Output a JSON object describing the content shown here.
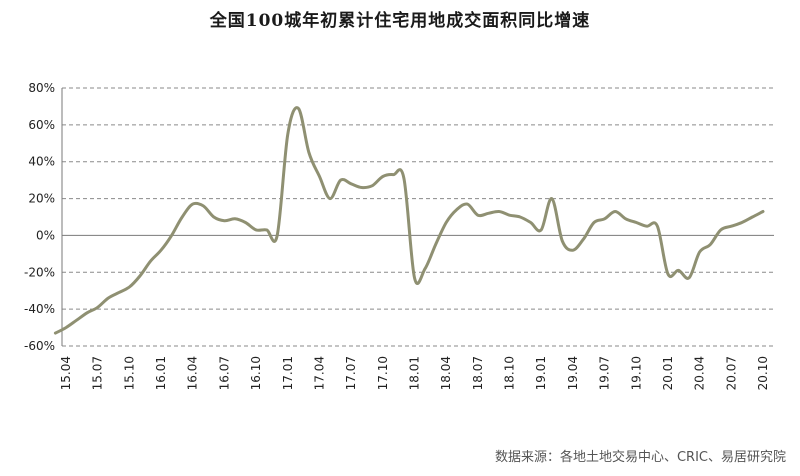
{
  "chart_data": {
    "type": "line",
    "title": "全国100城年初累计住宅用地成交面积同比增速",
    "source": "数据来源：各地土地交易中心、CRIC、易居研究院",
    "ylim": [
      -60,
      80
    ],
    "yticks": [
      -60,
      -40,
      -20,
      0,
      20,
      40,
      60,
      80
    ],
    "ytick_labels": [
      "-60%",
      "-40%",
      "-20%",
      "0%",
      "20%",
      "40%",
      "60%",
      "80%"
    ],
    "grid": "horizontal dashed",
    "legend": "none",
    "xtick_labels": [
      "15.04",
      "15.07",
      "15.10",
      "16.01",
      "16.04",
      "16.07",
      "16.10",
      "17.01",
      "17.04",
      "17.07",
      "17.10",
      "18.01",
      "18.04",
      "18.07",
      "18.10",
      "19.01",
      "19.04",
      "19.07",
      "19.10",
      "20.01",
      "20.04",
      "20.07",
      "20.10"
    ],
    "series": [
      {
        "color": "#8f9072",
        "values": [
          [
            "15.03",
            -53
          ],
          [
            "15.04",
            -50
          ],
          [
            "15.05",
            -46
          ],
          [
            "15.06",
            -42
          ],
          [
            "15.07",
            -39
          ],
          [
            "15.08",
            -34
          ],
          [
            "15.09",
            -31
          ],
          [
            "15.10",
            -28
          ],
          [
            "15.11",
            -22
          ],
          [
            "15.12",
            -14
          ],
          [
            "16.01",
            -8
          ],
          [
            "16.02",
            0
          ],
          [
            "16.03",
            10
          ],
          [
            "16.04",
            17
          ],
          [
            "16.05",
            16
          ],
          [
            "16.06",
            10
          ],
          [
            "16.07",
            8
          ],
          [
            "16.08",
            9
          ],
          [
            "16.09",
            7
          ],
          [
            "16.10",
            3
          ],
          [
            "16.11",
            3
          ],
          [
            "16.12",
            0
          ],
          [
            "17.01",
            55
          ],
          [
            "17.02",
            69
          ],
          [
            "17.03",
            45
          ],
          [
            "17.04",
            32
          ],
          [
            "17.05",
            20
          ],
          [
            "17.06",
            30
          ],
          [
            "17.07",
            28
          ],
          [
            "17.08",
            26
          ],
          [
            "17.09",
            27
          ],
          [
            "17.10",
            32
          ],
          [
            "17.11",
            33
          ],
          [
            "17.12",
            31
          ],
          [
            "18.01",
            -23
          ],
          [
            "18.02",
            -18
          ],
          [
            "18.03",
            -5
          ],
          [
            "18.04",
            7
          ],
          [
            "18.05",
            14
          ],
          [
            "18.06",
            17
          ],
          [
            "18.07",
            11
          ],
          [
            "18.08",
            12
          ],
          [
            "18.09",
            13
          ],
          [
            "18.10",
            11
          ],
          [
            "18.11",
            10
          ],
          [
            "18.12",
            7
          ],
          [
            "19.01",
            3
          ],
          [
            "19.02",
            20
          ],
          [
            "19.03",
            -3
          ],
          [
            "19.04",
            -8
          ],
          [
            "19.05",
            -2
          ],
          [
            "19.06",
            7
          ],
          [
            "19.07",
            9
          ],
          [
            "19.08",
            13
          ],
          [
            "19.09",
            9
          ],
          [
            "19.10",
            7
          ],
          [
            "19.11",
            5
          ],
          [
            "19.12",
            5
          ],
          [
            "20.01",
            -21
          ],
          [
            "20.02",
            -19
          ],
          [
            "20.03",
            -23
          ],
          [
            "20.04",
            -9
          ],
          [
            "20.05",
            -5
          ],
          [
            "20.06",
            3
          ],
          [
            "20.07",
            5
          ],
          [
            "20.08",
            7
          ],
          [
            "20.09",
            10
          ],
          [
            "20.10",
            13
          ]
        ]
      }
    ]
  }
}
